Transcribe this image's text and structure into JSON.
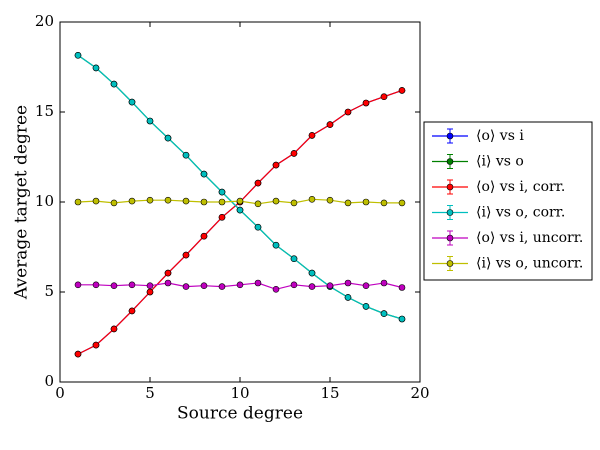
{
  "chart_data": {
    "type": "line",
    "xlabel": "Source degree",
    "ylabel": "Average target degree",
    "x": [
      1,
      2,
      3,
      4,
      5,
      6,
      7,
      8,
      9,
      10,
      11,
      12,
      13,
      14,
      15,
      16,
      17,
      18,
      19
    ],
    "xlim": [
      0,
      20
    ],
    "xticks": [
      0,
      5,
      10,
      15,
      20
    ],
    "ylim": [
      0,
      20
    ],
    "yticks": [
      0,
      5,
      10,
      15,
      20
    ],
    "legend": "right",
    "series": [
      {
        "name": "⟨o⟩ vs i",
        "color": "#0000ff",
        "values": [
          1.55,
          2.05,
          2.95,
          3.95,
          5.0,
          6.05,
          7.05,
          8.1,
          9.15,
          10.0,
          11.05,
          12.05,
          12.7,
          13.7,
          14.3,
          15.0,
          15.5,
          15.85,
          16.2
        ]
      },
      {
        "name": "⟨i⟩ vs o",
        "color": "#008000",
        "values": [
          18.15,
          17.45,
          16.55,
          15.55,
          14.5,
          13.55,
          12.6,
          11.55,
          10.55,
          9.55,
          8.6,
          7.6,
          6.85,
          6.05,
          5.3,
          4.7,
          4.2,
          3.8,
          3.5
        ]
      },
      {
        "name": "⟨o⟩ vs i, corr.",
        "color": "#ff0000",
        "values": [
          1.55,
          2.05,
          2.95,
          3.95,
          5.0,
          6.05,
          7.05,
          8.1,
          9.15,
          10.0,
          11.05,
          12.05,
          12.7,
          13.7,
          14.3,
          15.0,
          15.5,
          15.85,
          16.2
        ]
      },
      {
        "name": "⟨i⟩ vs o, corr.",
        "color": "#00bfbf",
        "values": [
          18.15,
          17.45,
          16.55,
          15.55,
          14.5,
          13.55,
          12.6,
          11.55,
          10.55,
          9.55,
          8.6,
          7.6,
          6.85,
          6.05,
          5.3,
          4.7,
          4.2,
          3.8,
          3.5
        ]
      },
      {
        "name": "⟨o⟩ vs i, uncorr.",
        "color": "#bf00bf",
        "values": [
          5.4,
          5.4,
          5.35,
          5.4,
          5.35,
          5.5,
          5.3,
          5.35,
          5.3,
          5.4,
          5.5,
          5.15,
          5.4,
          5.3,
          5.35,
          5.5,
          5.35,
          5.5,
          5.25
        ]
      },
      {
        "name": "⟨i⟩ vs o, uncorr.",
        "color": "#bfbf00",
        "values": [
          10.0,
          10.05,
          9.95,
          10.05,
          10.1,
          10.1,
          10.05,
          10.0,
          10.0,
          10.05,
          9.9,
          10.05,
          9.95,
          10.15,
          10.1,
          9.95,
          10.0,
          9.95,
          9.95
        ]
      }
    ]
  }
}
